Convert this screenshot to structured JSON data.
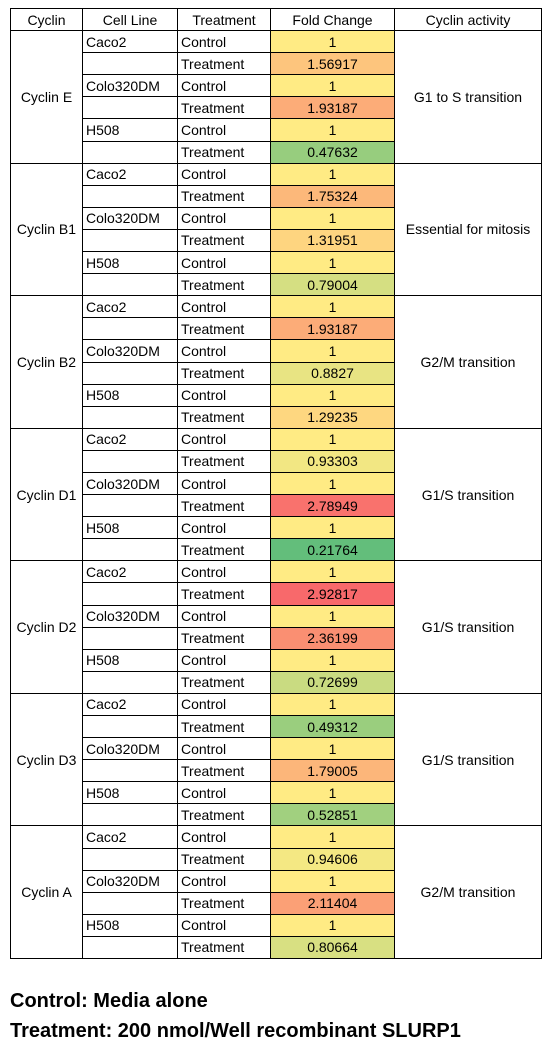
{
  "chart_data": {
    "type": "table",
    "headers": [
      "Cyclin",
      "Cell Line",
      "Treatment",
      "Fold Change",
      "Cyclin activity"
    ],
    "groups": [
      {
        "cyclin": "Cyclin E",
        "activity": "G1 to S transition",
        "rows": [
          {
            "line": "Caco2",
            "treatment": "Control",
            "fold_change": "1"
          },
          {
            "line": "",
            "treatment": "Treatment",
            "fold_change": "1.56917"
          },
          {
            "line": "Colo320DM",
            "treatment": "Control",
            "fold_change": "1"
          },
          {
            "line": "",
            "treatment": "Treatment",
            "fold_change": "1.93187"
          },
          {
            "line": "H508",
            "treatment": "Control",
            "fold_change": "1"
          },
          {
            "line": "",
            "treatment": "Treatment",
            "fold_change": "0.47632"
          }
        ]
      },
      {
        "cyclin": "Cyclin B1",
        "activity": "Essential for mitosis",
        "rows": [
          {
            "line": "Caco2",
            "treatment": "Control",
            "fold_change": "1"
          },
          {
            "line": "",
            "treatment": "Treatment",
            "fold_change": "1.75324"
          },
          {
            "line": "Colo320DM",
            "treatment": "Control",
            "fold_change": "1"
          },
          {
            "line": "",
            "treatment": "Treatment",
            "fold_change": "1.31951"
          },
          {
            "line": "H508",
            "treatment": "Control",
            "fold_change": "1"
          },
          {
            "line": "",
            "treatment": "Treatment",
            "fold_change": "0.79004"
          }
        ]
      },
      {
        "cyclin": "Cyclin B2",
        "activity": "G2/M transition",
        "rows": [
          {
            "line": "Caco2",
            "treatment": "Control",
            "fold_change": "1"
          },
          {
            "line": "",
            "treatment": "Treatment",
            "fold_change": "1.93187"
          },
          {
            "line": "Colo320DM",
            "treatment": "Control",
            "fold_change": "1"
          },
          {
            "line": "",
            "treatment": "Treatment",
            "fold_change": "0.8827"
          },
          {
            "line": "H508",
            "treatment": "Control",
            "fold_change": "1"
          },
          {
            "line": "",
            "treatment": "Treatment",
            "fold_change": "1.29235"
          }
        ]
      },
      {
        "cyclin": "Cyclin D1",
        "activity": "G1/S transition",
        "rows": [
          {
            "line": "Caco2",
            "treatment": "Control",
            "fold_change": "1"
          },
          {
            "line": "",
            "treatment": "Treatment",
            "fold_change": "0.93303"
          },
          {
            "line": "Colo320DM",
            "treatment": "Control",
            "fold_change": "1"
          },
          {
            "line": "",
            "treatment": "Treatment",
            "fold_change": "2.78949"
          },
          {
            "line": "H508",
            "treatment": "Control",
            "fold_change": "1"
          },
          {
            "line": "",
            "treatment": "Treatment",
            "fold_change": "0.21764"
          }
        ]
      },
      {
        "cyclin": "Cyclin D2",
        "activity": "G1/S transition",
        "rows": [
          {
            "line": "Caco2",
            "treatment": "Control",
            "fold_change": "1"
          },
          {
            "line": "",
            "treatment": "Treatment",
            "fold_change": "2.92817"
          },
          {
            "line": "Colo320DM",
            "treatment": "Control",
            "fold_change": "1"
          },
          {
            "line": "",
            "treatment": "Treatment",
            "fold_change": "2.36199"
          },
          {
            "line": "H508",
            "treatment": "Control",
            "fold_change": "1"
          },
          {
            "line": "",
            "treatment": "Treatment",
            "fold_change": "0.72699"
          }
        ]
      },
      {
        "cyclin": "Cyclin D3",
        "activity": "G1/S transition",
        "rows": [
          {
            "line": "Caco2",
            "treatment": "Control",
            "fold_change": "1"
          },
          {
            "line": "",
            "treatment": "Treatment",
            "fold_change": "0.49312"
          },
          {
            "line": "Colo320DM",
            "treatment": "Control",
            "fold_change": "1"
          },
          {
            "line": "",
            "treatment": "Treatment",
            "fold_change": "1.79005"
          },
          {
            "line": "H508",
            "treatment": "Control",
            "fold_change": "1"
          },
          {
            "line": "",
            "treatment": "Treatment",
            "fold_change": "0.52851"
          }
        ]
      },
      {
        "cyclin": "Cyclin A",
        "activity": "G2/M transition",
        "rows": [
          {
            "line": "Caco2",
            "treatment": "Control",
            "fold_change": "1"
          },
          {
            "line": "",
            "treatment": "Treatment",
            "fold_change": "0.94606"
          },
          {
            "line": "Colo320DM",
            "treatment": "Control",
            "fold_change": "1"
          },
          {
            "line": "",
            "treatment": "Treatment",
            "fold_change": "2.11404"
          },
          {
            "line": "H508",
            "treatment": "Control",
            "fold_change": "1"
          },
          {
            "line": "",
            "treatment": "Treatment",
            "fold_change": "0.80664"
          }
        ]
      }
    ],
    "color_scale": {
      "low": "#63be7b",
      "mid": "#ffeb84",
      "high": "#f8696b"
    }
  },
  "legend": {
    "control": "Control: Media alone",
    "treatment": "Treatment: 200 nmol/Well recombinant SLURP1"
  }
}
